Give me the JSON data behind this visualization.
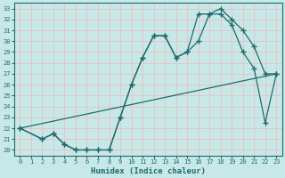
{
  "xlabel": "Humidex (Indice chaleur)",
  "bg_color": "#c8e8e8",
  "grid_color": "#afd4d4",
  "line_color": "#1e6b6b",
  "xlim": [
    -0.5,
    23.5
  ],
  "ylim": [
    19.5,
    33.5
  ],
  "xticks": [
    0,
    1,
    2,
    3,
    4,
    5,
    6,
    7,
    8,
    9,
    10,
    11,
    12,
    13,
    14,
    15,
    16,
    17,
    18,
    19,
    20,
    21,
    22,
    23
  ],
  "yticks": [
    20,
    21,
    22,
    23,
    24,
    25,
    26,
    27,
    28,
    29,
    30,
    31,
    32,
    33
  ],
  "line1_x": [
    0,
    23
  ],
  "line1_y": [
    22.0,
    27.0
  ],
  "line2_x": [
    0,
    2,
    3,
    4,
    5,
    6,
    7,
    8,
    9,
    10,
    11,
    12,
    13,
    14,
    15,
    16,
    17,
    18,
    19,
    20,
    21,
    22,
    23
  ],
  "line2_y": [
    22.0,
    21.0,
    21.5,
    20.5,
    20.0,
    20.0,
    20.0,
    20.0,
    23.0,
    26.0,
    28.5,
    30.5,
    30.5,
    28.5,
    29.0,
    30.0,
    32.5,
    32.5,
    31.5,
    29.0,
    27.5,
    22.5,
    27.0
  ],
  "line3_x": [
    0,
    2,
    3,
    4,
    5,
    6,
    7,
    8,
    9,
    10,
    11,
    12,
    13,
    14,
    15,
    16,
    17,
    18,
    19,
    20,
    21,
    22,
    23
  ],
  "line3_y": [
    22.0,
    21.0,
    21.5,
    20.5,
    20.0,
    20.0,
    20.0,
    20.0,
    23.0,
    26.0,
    28.5,
    30.5,
    30.5,
    28.5,
    29.0,
    32.5,
    32.5,
    33.0,
    32.0,
    31.0,
    29.5,
    27.0,
    27.0
  ]
}
